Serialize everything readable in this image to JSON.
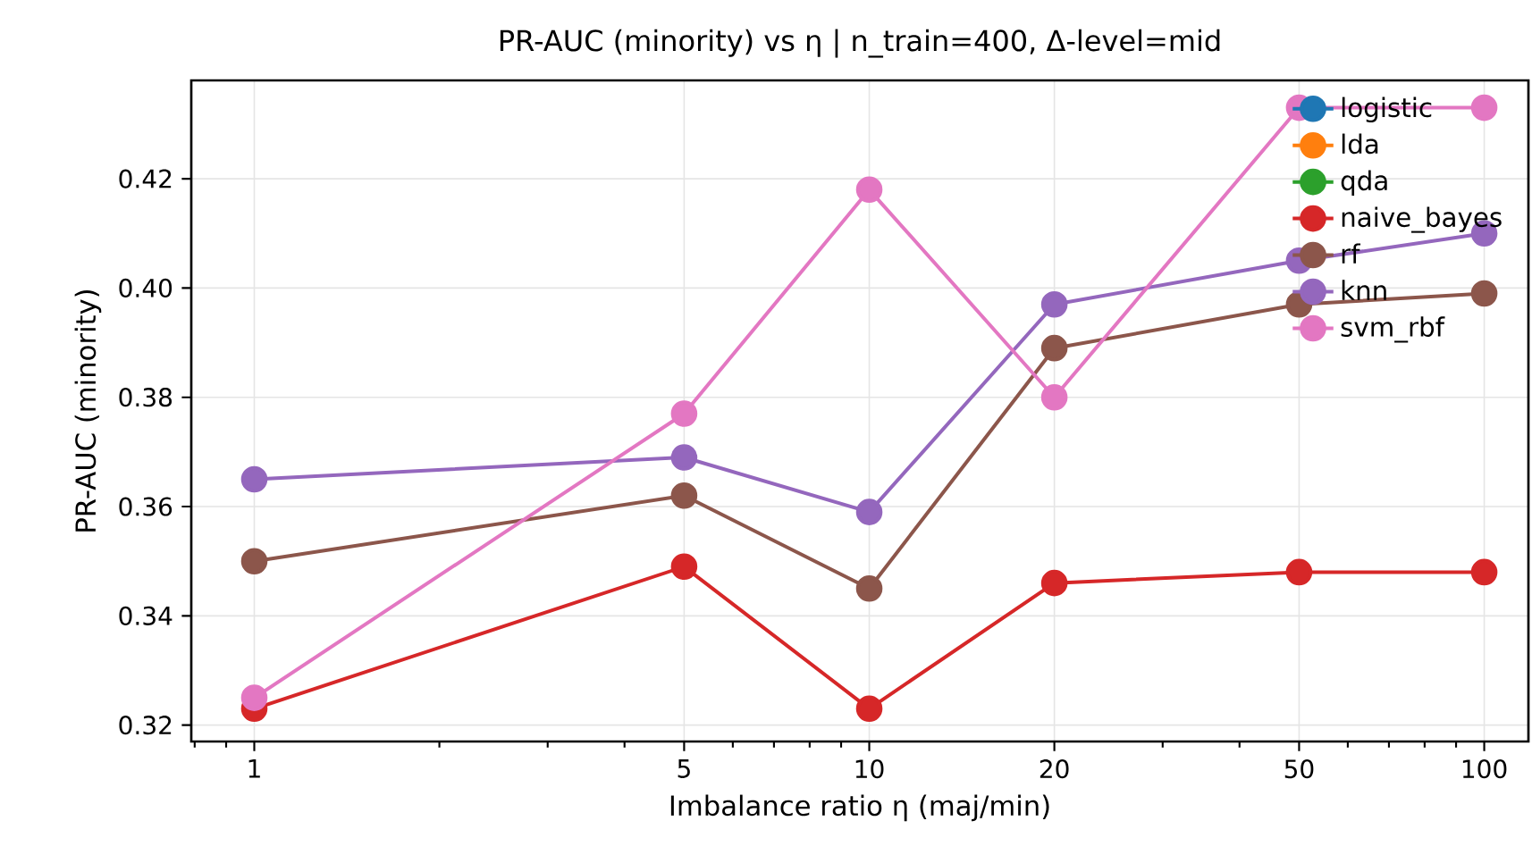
{
  "chart_data": {
    "type": "line",
    "title": "PR-AUC (minority) vs η  |  n_train=400, Δ-level=mid",
    "xlabel": "Imbalance ratio η (maj/min)",
    "ylabel": "PR-AUC (minority)",
    "x": [
      1,
      5,
      10,
      20,
      50,
      100
    ],
    "series": [
      {
        "name": "logistic",
        "color": "#1f77b4",
        "values": [
          null,
          null,
          null,
          null,
          null,
          null
        ]
      },
      {
        "name": "lda",
        "color": "#ff7f0e",
        "values": [
          null,
          null,
          null,
          null,
          null,
          null
        ]
      },
      {
        "name": "qda",
        "color": "#2ca02c",
        "values": [
          null,
          null,
          null,
          null,
          null,
          null
        ]
      },
      {
        "name": "naive_bayes",
        "color": "#d62728",
        "values": [
          0.323,
          0.349,
          0.323,
          0.346,
          0.348,
          0.348
        ]
      },
      {
        "name": "rf",
        "color": "#8c564b",
        "values": [
          0.35,
          0.362,
          0.345,
          0.389,
          0.397,
          0.399
        ]
      },
      {
        "name": "knn",
        "color": "#9467bd",
        "values": [
          0.365,
          0.369,
          0.359,
          0.397,
          0.405,
          0.41
        ]
      },
      {
        "name": "svm_rbf",
        "color": "#e377c2",
        "values": [
          0.325,
          0.377,
          0.418,
          0.38,
          0.433,
          0.433
        ]
      }
    ],
    "log": "x",
    "xlim": [
      0.79,
      118
    ],
    "ylim": [
      0.317,
      0.438
    ],
    "xticks": [
      {
        "value": 0.8,
        "label": null
      },
      {
        "value": 0.9,
        "label": null
      },
      1,
      {
        "value": 2,
        "label": null
      },
      {
        "value": 3,
        "label": null
      },
      {
        "value": 4,
        "label": null
      },
      5,
      {
        "value": 6,
        "label": null
      },
      {
        "value": 7,
        "label": null
      },
      {
        "value": 8,
        "label": null
      },
      {
        "value": 9,
        "label": null
      },
      10,
      20,
      {
        "value": 30,
        "label": null
      },
      {
        "value": 40,
        "label": null
      },
      50,
      {
        "value": 60,
        "label": null
      },
      {
        "value": 70,
        "label": null
      },
      {
        "value": 80,
        "label": null
      },
      {
        "value": 90,
        "label": null
      },
      100
    ],
    "yticks": [
      0.32,
      0.34,
      0.36,
      0.38,
      {
        "value": 0.4,
        "label": "0.40"
      },
      0.42
    ],
    "grid": true,
    "legend": "top right",
    "marker": "circle",
    "line_style": "solid"
  }
}
